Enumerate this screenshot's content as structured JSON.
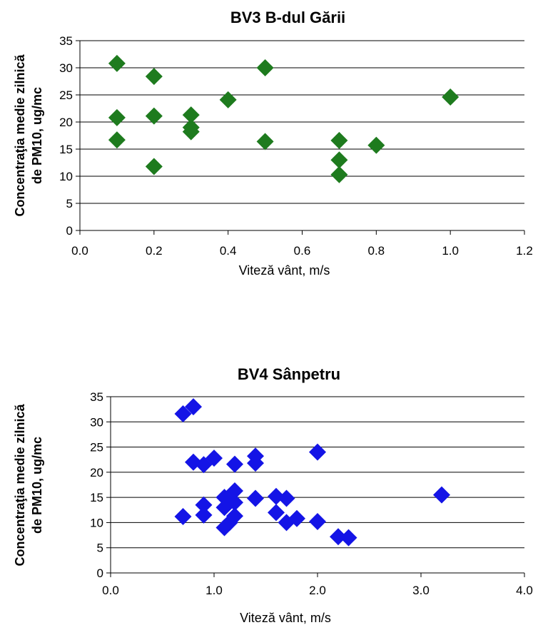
{
  "chart_data": [
    {
      "type": "scatter",
      "title": "BV3 B-dul Gării",
      "xlabel": "Viteză vânt, m/s",
      "ylabel_line1": "Concentraţia medie zilnică",
      "ylabel_line2": "de PM10, ug/mc",
      "xlim": [
        0,
        1.2
      ],
      "ylim": [
        0,
        35
      ],
      "xticks": [
        "0.0",
        "0.2",
        "0.4",
        "0.6",
        "0.8",
        "1.0",
        "1.2"
      ],
      "yticks": [
        "0",
        "5",
        "10",
        "15",
        "20",
        "25",
        "30",
        "35"
      ],
      "grid": "horizontal",
      "marker": "diamond",
      "color": "#1e7b1e",
      "points": [
        {
          "x": 0.1,
          "y": 30.8
        },
        {
          "x": 0.1,
          "y": 20.8
        },
        {
          "x": 0.1,
          "y": 16.7
        },
        {
          "x": 0.2,
          "y": 28.4
        },
        {
          "x": 0.2,
          "y": 21.1
        },
        {
          "x": 0.2,
          "y": 11.8
        },
        {
          "x": 0.3,
          "y": 21.3
        },
        {
          "x": 0.3,
          "y": 19.0
        },
        {
          "x": 0.3,
          "y": 18.2
        },
        {
          "x": 0.4,
          "y": 24.1
        },
        {
          "x": 0.5,
          "y": 30.0
        },
        {
          "x": 0.5,
          "y": 16.4
        },
        {
          "x": 0.7,
          "y": 16.6
        },
        {
          "x": 0.7,
          "y": 13.0
        },
        {
          "x": 0.7,
          "y": 10.3
        },
        {
          "x": 0.8,
          "y": 15.7
        },
        {
          "x": 1.0,
          "y": 24.6
        }
      ]
    },
    {
      "type": "scatter",
      "title": "BV4 Sânpetru",
      "xlabel": "Viteză vânt, m/s",
      "ylabel_line1": "Concentraţia medie zilnică",
      "ylabel_line2": "de PM10, ug/mc",
      "xlim": [
        0,
        4.0
      ],
      "ylim": [
        0,
        35
      ],
      "xticks": [
        "0.0",
        "1.0",
        "2.0",
        "3.0",
        "4.0"
      ],
      "yticks": [
        "0",
        "5",
        "10",
        "15",
        "20",
        "25",
        "30",
        "35"
      ],
      "grid": "horizontal",
      "marker": "diamond",
      "color": "#1414e6",
      "points": [
        {
          "x": 0.7,
          "y": 31.6
        },
        {
          "x": 0.8,
          "y": 33.0
        },
        {
          "x": 0.8,
          "y": 22.0
        },
        {
          "x": 0.9,
          "y": 21.5
        },
        {
          "x": 1.0,
          "y": 22.8
        },
        {
          "x": 1.2,
          "y": 21.6
        },
        {
          "x": 1.4,
          "y": 23.2
        },
        {
          "x": 1.4,
          "y": 21.8
        },
        {
          "x": 2.0,
          "y": 24.0
        },
        {
          "x": 0.7,
          "y": 11.2
        },
        {
          "x": 0.9,
          "y": 13.5
        },
        {
          "x": 0.9,
          "y": 11.5
        },
        {
          "x": 1.1,
          "y": 15.0
        },
        {
          "x": 1.1,
          "y": 13.0
        },
        {
          "x": 1.1,
          "y": 9.0
        },
        {
          "x": 1.2,
          "y": 16.3
        },
        {
          "x": 1.2,
          "y": 14.0
        },
        {
          "x": 1.2,
          "y": 11.3
        },
        {
          "x": 1.15,
          "y": 10.0
        },
        {
          "x": 1.4,
          "y": 14.8
        },
        {
          "x": 1.6,
          "y": 15.2
        },
        {
          "x": 1.6,
          "y": 12.0
        },
        {
          "x": 1.7,
          "y": 14.8
        },
        {
          "x": 1.7,
          "y": 10.0
        },
        {
          "x": 1.8,
          "y": 10.8
        },
        {
          "x": 2.0,
          "y": 10.2
        },
        {
          "x": 2.2,
          "y": 7.2
        },
        {
          "x": 2.3,
          "y": 7.0
        },
        {
          "x": 3.2,
          "y": 15.5
        }
      ]
    }
  ]
}
